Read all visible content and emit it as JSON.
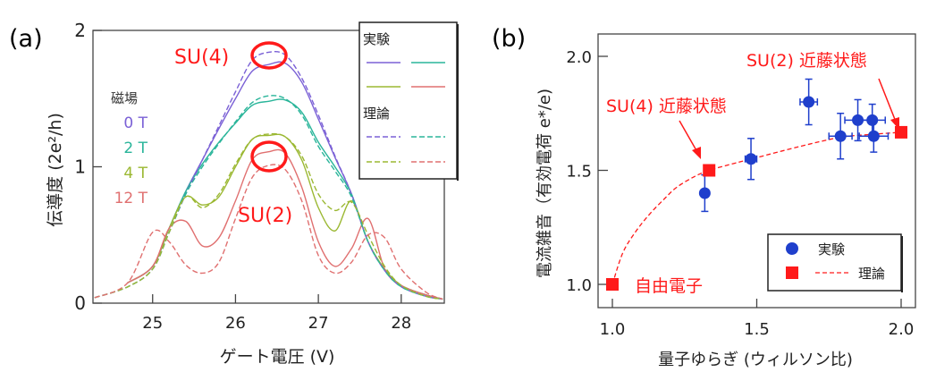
{
  "chart_data": [
    {
      "panel_label": "(a)",
      "type": "line",
      "xlabel": "ゲート電圧 (V)",
      "ylabel": "伝導度 (2e²/h)",
      "xlim": [
        24.28,
        28.52
      ],
      "ylim": [
        0,
        2
      ],
      "x_ticks": [
        "25",
        "26",
        "27",
        "28"
      ],
      "y_ticks": [
        "0",
        "1",
        "2"
      ],
      "grid": false,
      "field_legend": {
        "title": "磁場",
        "items": [
          "0 T",
          "2 T",
          "4 T",
          "12 T"
        ]
      },
      "legend": {
        "placement": "top-right",
        "experiment_label": "実験",
        "theory_label": "理論"
      },
      "annotations": [
        "SU(4)",
        "SU(2)"
      ],
      "x": [
        24.3,
        24.7,
        25.0,
        25.2,
        25.4,
        25.6,
        25.8,
        26.0,
        26.2,
        26.4,
        26.6,
        26.8,
        27.0,
        27.2,
        27.4,
        27.6,
        27.8,
        28.0,
        28.3,
        28.5
      ],
      "series": [
        {
          "field": "0 T",
          "kind": "experiment",
          "color": "#7b61d6",
          "values": [
            null,
            0.15,
            0.27,
            0.55,
            0.82,
            1.05,
            1.28,
            1.5,
            1.7,
            1.75,
            1.76,
            1.62,
            1.35,
            1.07,
            0.8,
            0.45,
            0.25,
            0.13,
            0.06,
            0.03
          ]
        },
        {
          "field": "2 T",
          "kind": "experiment",
          "color": "#2ab59a",
          "values": [
            null,
            0.15,
            0.27,
            0.55,
            0.82,
            1.02,
            1.18,
            1.32,
            1.45,
            1.48,
            1.49,
            1.4,
            1.18,
            1.0,
            0.8,
            0.45,
            0.25,
            0.13,
            0.06,
            0.03
          ]
        },
        {
          "field": "4 T",
          "kind": "experiment",
          "color": "#9bb832",
          "values": [
            null,
            0.15,
            0.27,
            0.55,
            0.78,
            0.72,
            0.78,
            1.0,
            1.2,
            1.23,
            1.22,
            1.05,
            0.7,
            0.53,
            0.75,
            0.45,
            0.25,
            0.13,
            0.06,
            0.03
          ]
        },
        {
          "field": "12 T",
          "kind": "experiment",
          "color": "#e07070",
          "values": [
            null,
            0.15,
            0.27,
            0.55,
            0.6,
            0.42,
            0.48,
            0.75,
            1.05,
            1.11,
            1.1,
            0.85,
            0.45,
            0.27,
            0.4,
            0.62,
            0.25,
            0.13,
            0.06,
            0.03
          ]
        },
        {
          "field": "0 T",
          "kind": "theory",
          "color": "#7b61d6",
          "values": [
            0.04,
            0.12,
            0.25,
            0.52,
            0.8,
            1.05,
            1.3,
            1.55,
            1.78,
            1.84,
            1.82,
            1.65,
            1.38,
            1.08,
            0.8,
            0.45,
            0.24,
            0.12,
            0.05,
            0.03
          ]
        },
        {
          "field": "2 T",
          "kind": "theory",
          "color": "#2ab59a",
          "values": [
            0.04,
            0.12,
            0.25,
            0.52,
            0.8,
            1.0,
            1.17,
            1.33,
            1.47,
            1.52,
            1.5,
            1.38,
            1.15,
            0.97,
            0.78,
            0.45,
            0.24,
            0.12,
            0.05,
            0.03
          ]
        },
        {
          "field": "4 T",
          "kind": "theory",
          "color": "#9bb832",
          "values": [
            0.04,
            0.12,
            0.25,
            0.52,
            0.78,
            0.7,
            0.8,
            1.02,
            1.2,
            1.24,
            1.22,
            1.08,
            0.8,
            0.68,
            0.74,
            0.5,
            0.27,
            0.13,
            0.05,
            0.03
          ]
        },
        {
          "field": "12 T",
          "kind": "theory",
          "color": "#e07070",
          "values": [
            0.04,
            0.15,
            0.52,
            0.45,
            0.28,
            0.22,
            0.3,
            0.62,
            0.92,
            1.01,
            0.98,
            0.75,
            0.35,
            0.22,
            0.3,
            0.5,
            0.48,
            0.25,
            0.08,
            0.03
          ]
        }
      ]
    },
    {
      "panel_label": "(b)",
      "type": "scatter",
      "xlabel": "量子ゆらぎ (ウィルソン比)",
      "ylabel": "電流雑音（有効電荷 e*/e)",
      "xlim": [
        0.95,
        2.05
      ],
      "ylim": [
        0.9,
        2.1
      ],
      "x_ticks": [
        "1.0",
        "1.5",
        "2.0"
      ],
      "y_ticks": [
        "1.0",
        "1.5",
        "2.0"
      ],
      "grid": false,
      "legend": {
        "placement": "bottom-right",
        "experiment_label": "実験",
        "theory_label": "理論"
      },
      "experiment": {
        "color": "#1f3fcc",
        "points": [
          {
            "x": 1.32,
            "y": 1.4,
            "xerr": 0.0,
            "yerr": 0.08
          },
          {
            "x": 1.48,
            "y": 1.55,
            "xerr": 0.02,
            "yerr": 0.09
          },
          {
            "x": 1.68,
            "y": 1.8,
            "xerr": 0.03,
            "yerr": 0.1
          },
          {
            "x": 1.79,
            "y": 1.65,
            "xerr": 0.04,
            "yerr": 0.1
          },
          {
            "x": 1.85,
            "y": 1.72,
            "xerr": 0.045,
            "yerr": 0.09
          },
          {
            "x": 1.9,
            "y": 1.72,
            "xerr": 0.045,
            "yerr": 0.07
          },
          {
            "x": 1.905,
            "y": 1.65,
            "xerr": 0.05,
            "yerr": 0.07
          }
        ]
      },
      "theory": {
        "color": "#ff1a1a",
        "points": [
          {
            "x": 1.0,
            "y": 1.0,
            "label": "自由電子"
          },
          {
            "x": 1.335,
            "y": 1.5,
            "label": "SU(4) 近藤状態"
          },
          {
            "x": 2.0,
            "y": 1.667,
            "label": "SU(2)  近藤状態"
          }
        ],
        "curve": {
          "x": [
            1.0,
            1.036,
            1.08,
            1.129,
            1.18,
            1.222,
            1.28,
            1.335,
            1.42,
            1.5,
            1.65,
            1.79,
            1.9,
            2.0
          ],
          "y": [
            1.0,
            1.138,
            1.23,
            1.308,
            1.375,
            1.425,
            1.47,
            1.5,
            1.53,
            1.556,
            1.605,
            1.645,
            1.658,
            1.667
          ]
        }
      }
    }
  ]
}
